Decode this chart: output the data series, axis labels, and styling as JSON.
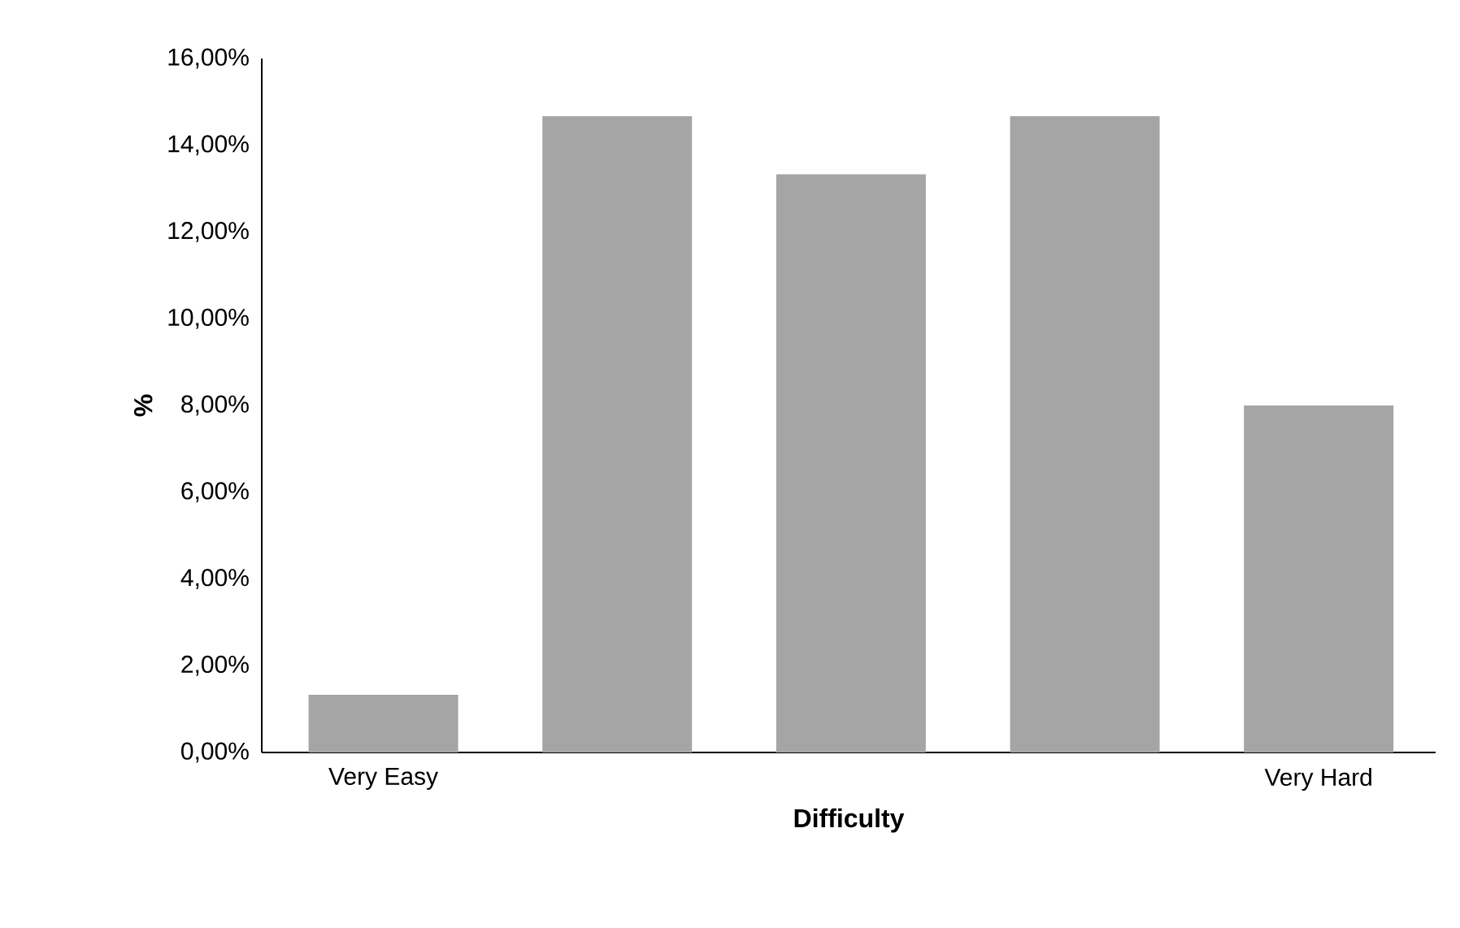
{
  "chart_data": {
    "type": "bar",
    "xlabel": "Difficulty",
    "ylabel": "%",
    "categories": [
      "Very Easy",
      null,
      null,
      null,
      "Very Hard"
    ],
    "values": [
      1.33,
      14.67,
      13.33,
      14.67,
      8.0
    ],
    "color": "#a5a5a5",
    "ylim": [
      0,
      16
    ],
    "yticks": [
      {
        "value": 0,
        "label": "0,00%"
      },
      {
        "value": 2,
        "label": "2,00%"
      },
      {
        "value": 4,
        "label": "4,00%"
      },
      {
        "value": 6,
        "label": "6,00%"
      },
      {
        "value": 8,
        "label": "8,00%"
      },
      {
        "value": 10,
        "label": "10,00%"
      },
      {
        "value": 12,
        "label": "12,00%"
      },
      {
        "value": 14,
        "label": "14,00%"
      },
      {
        "value": 16,
        "label": "16,00%"
      }
    ]
  }
}
